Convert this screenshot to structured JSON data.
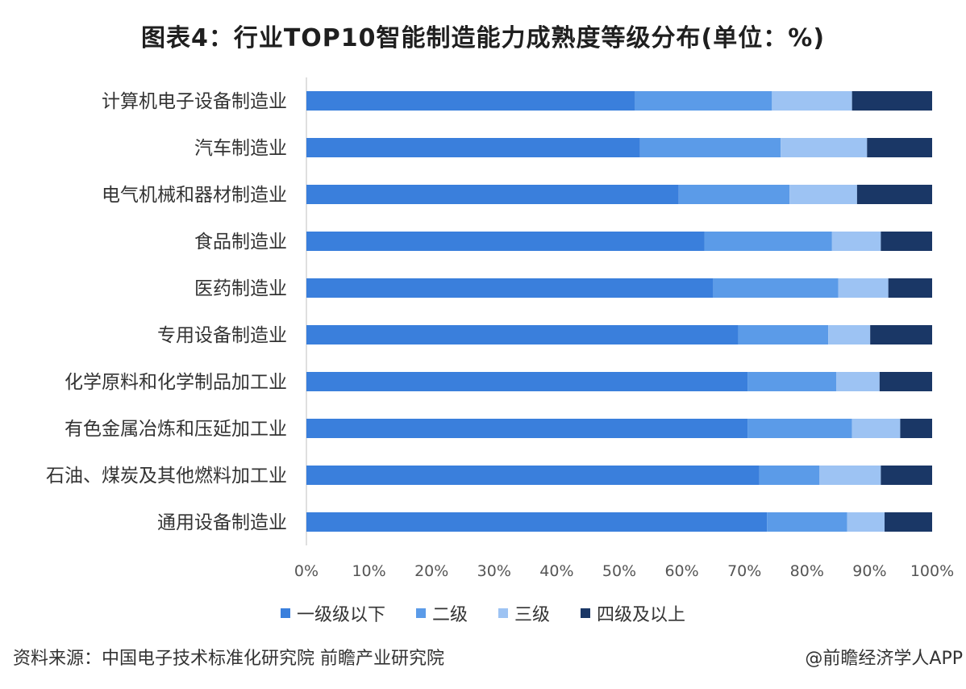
{
  "title": "图表4：行业TOP10智能制造能力成熟度等级分布(单位：%)",
  "source": "资料来源：中国电子技术标准化研究院 前瞻产业研究院",
  "credit": "@前瞻经济学人APP",
  "chart_data": {
    "type": "bar",
    "orientation": "horizontal",
    "stacked": true,
    "categories": [
      "计算机电子设备制造业",
      "汽车制造业",
      "电气机械和器材制造业",
      "食品制造业",
      "医药制造业",
      "专用设备制造业",
      "化学原料和化学制品加工业",
      "有色金属冶炼和压延加工业",
      "石油、煤炭及其他燃料加工业",
      "通用设备制造业"
    ],
    "series": [
      {
        "name": "一级级以下",
        "color": "#3a7fdc",
        "values": [
          52.5,
          53.3,
          59.5,
          63.6,
          65.0,
          69.0,
          70.5,
          70.5,
          72.4,
          73.6
        ]
      },
      {
        "name": "二级",
        "color": "#5b9be8",
        "values": [
          21.9,
          22.5,
          17.7,
          20.4,
          20.0,
          14.4,
          14.2,
          16.7,
          9.6,
          12.8
        ]
      },
      {
        "name": "三级",
        "color": "#9dc3f3",
        "values": [
          12.8,
          13.8,
          10.8,
          7.8,
          8.0,
          6.7,
          6.9,
          7.7,
          9.8,
          6.0
        ]
      },
      {
        "name": "四级及以上",
        "color": "#1a3766",
        "values": [
          12.8,
          10.4,
          12.0,
          8.2,
          7.0,
          9.9,
          8.4,
          5.1,
          8.2,
          7.6
        ]
      }
    ],
    "x_ticks": [
      "0%",
      "10%",
      "20%",
      "30%",
      "40%",
      "50%",
      "60%",
      "70%",
      "80%",
      "90%",
      "100%"
    ],
    "xlim": [
      0,
      100
    ],
    "legend_position": "bottom",
    "grid": false
  }
}
